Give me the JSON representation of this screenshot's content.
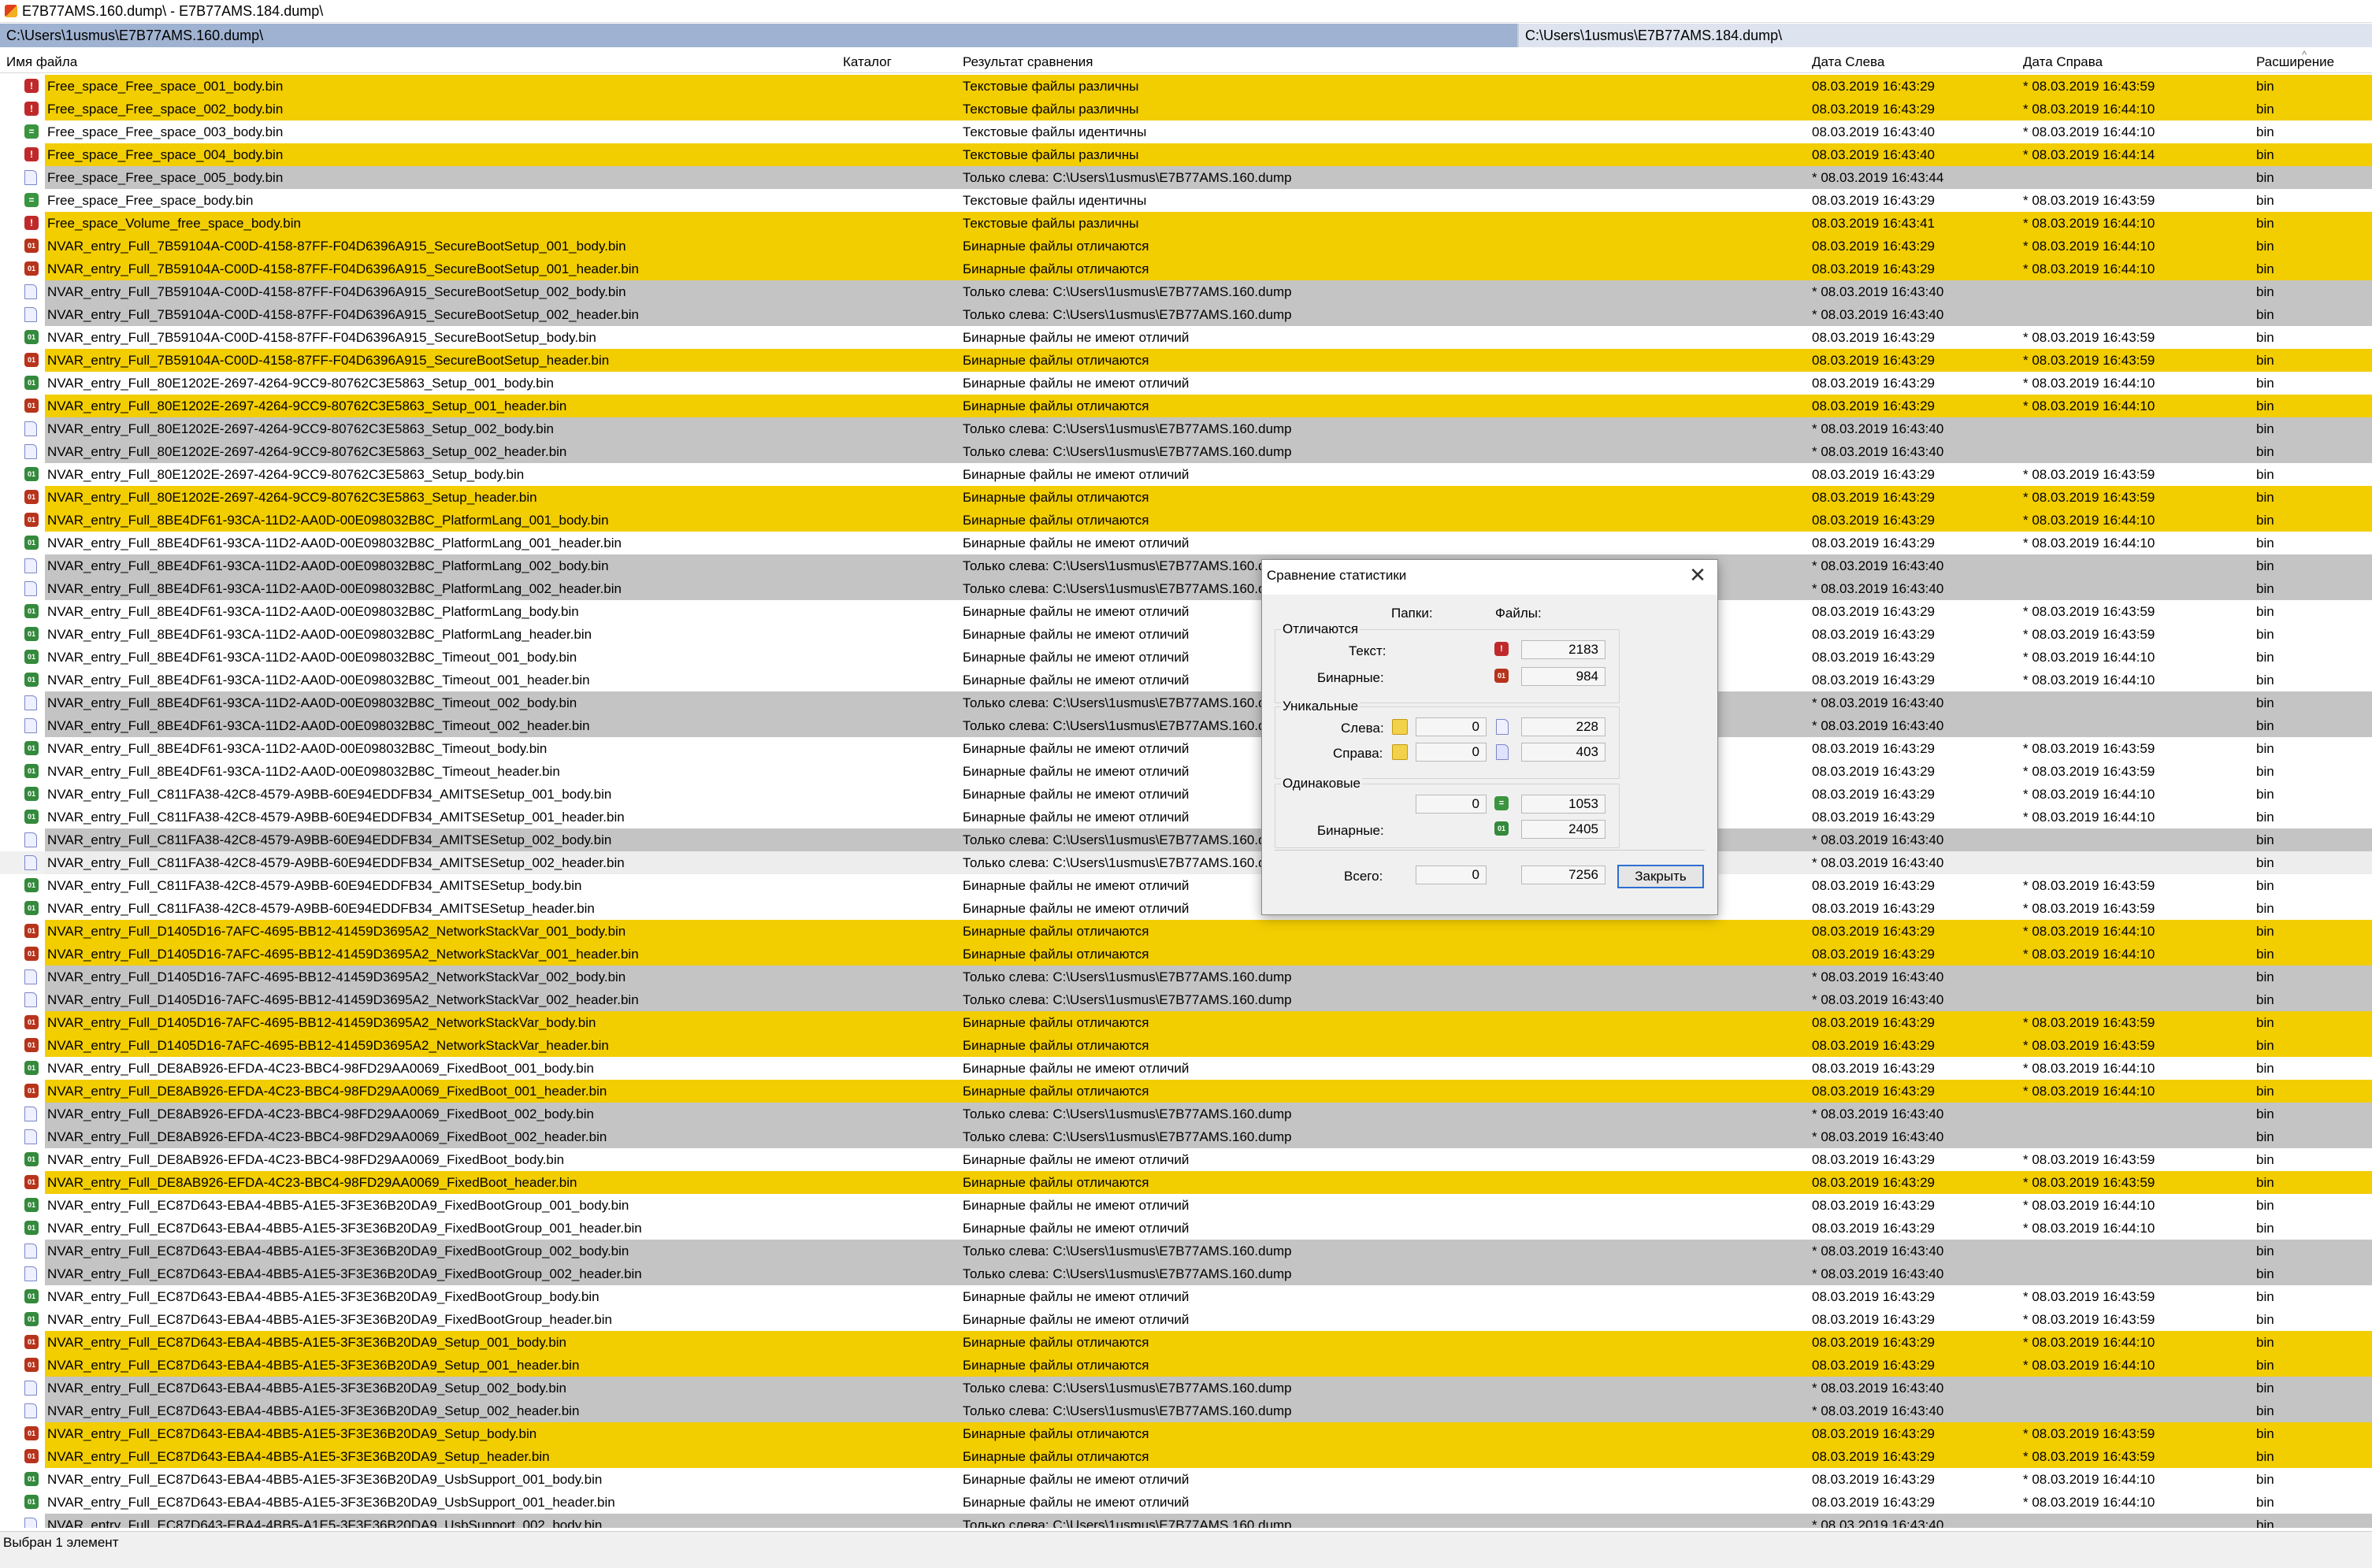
{
  "window": {
    "title": "E7B77AMS.160.dump\\ - E7B77AMS.184.dump\\"
  },
  "paths": {
    "left": "C:\\Users\\1usmus\\E7B77AMS.160.dump\\",
    "right": "C:\\Users\\1usmus\\E7B77AMS.184.dump\\"
  },
  "columns": {
    "name": "Имя файла",
    "folder": "Каталог",
    "result": "Результат сравнения",
    "date_left": "Дата Слева",
    "date_right": "Дата Справа",
    "ext": "Расширение"
  },
  "rows": [
    {
      "name": "Free_space_Free_space_001_body.bin",
      "type": "diff",
      "result": "Текстовые файлы различны",
      "dl": "08.03.2019 16:43:29",
      "dr": "* 08.03.2019 16:43:59",
      "ext": "bin"
    },
    {
      "name": "Free_space_Free_space_002_body.bin",
      "type": "diff",
      "result": "Текстовые файлы различны",
      "dl": "08.03.2019 16:43:29",
      "dr": "* 08.03.2019 16:44:10",
      "ext": "bin"
    },
    {
      "name": "Free_space_Free_space_003_body.bin",
      "type": "same",
      "result": "Текстовые файлы идентичны",
      "dl": "08.03.2019 16:43:40",
      "dr": "* 08.03.2019 16:44:10",
      "ext": "bin"
    },
    {
      "name": "Free_space_Free_space_004_body.bin",
      "type": "diff",
      "result": "Текстовые файлы различны",
      "dl": "08.03.2019 16:43:40",
      "dr": "* 08.03.2019 16:44:14",
      "ext": "bin"
    },
    {
      "name": "Free_space_Free_space_005_body.bin",
      "type": "left",
      "result": "Только слева: C:\\Users\\1usmus\\E7B77AMS.160.dump",
      "dl": "* 08.03.2019 16:43:44",
      "dr": "",
      "ext": "bin"
    },
    {
      "name": "Free_space_Free_space_body.bin",
      "type": "same",
      "result": "Текстовые файлы идентичны",
      "dl": "08.03.2019 16:43:29",
      "dr": "* 08.03.2019 16:43:59",
      "ext": "bin"
    },
    {
      "name": "Free_space_Volume_free_space_body.bin",
      "type": "diff",
      "result": "Текстовые файлы различны",
      "dl": "08.03.2019 16:43:41",
      "dr": "* 08.03.2019 16:44:10",
      "ext": "bin"
    },
    {
      "name": "NVAR_entry_Full_7B59104A-C00D-4158-87FF-F04D6396A915_SecureBootSetup_001_body.bin",
      "type": "bindiff",
      "result": "Бинарные файлы отличаются",
      "dl": "08.03.2019 16:43:29",
      "dr": "* 08.03.2019 16:44:10",
      "ext": "bin"
    },
    {
      "name": "NVAR_entry_Full_7B59104A-C00D-4158-87FF-F04D6396A915_SecureBootSetup_001_header.bin",
      "type": "bindiff",
      "result": "Бинарные файлы отличаются",
      "dl": "08.03.2019 16:43:29",
      "dr": "* 08.03.2019 16:44:10",
      "ext": "bin"
    },
    {
      "name": "NVAR_entry_Full_7B59104A-C00D-4158-87FF-F04D6396A915_SecureBootSetup_002_body.bin",
      "type": "left",
      "result": "Только слева: C:\\Users\\1usmus\\E7B77AMS.160.dump",
      "dl": "* 08.03.2019 16:43:40",
      "dr": "",
      "ext": "bin"
    },
    {
      "name": "NVAR_entry_Full_7B59104A-C00D-4158-87FF-F04D6396A915_SecureBootSetup_002_header.bin",
      "type": "left",
      "result": "Только слева: C:\\Users\\1usmus\\E7B77AMS.160.dump",
      "dl": "* 08.03.2019 16:43:40",
      "dr": "",
      "ext": "bin"
    },
    {
      "name": "NVAR_entry_Full_7B59104A-C00D-4158-87FF-F04D6396A915_SecureBootSetup_body.bin",
      "type": "binsame",
      "result": "Бинарные файлы не имеют отличий",
      "dl": "08.03.2019 16:43:29",
      "dr": "* 08.03.2019 16:43:59",
      "ext": "bin"
    },
    {
      "name": "NVAR_entry_Full_7B59104A-C00D-4158-87FF-F04D6396A915_SecureBootSetup_header.bin",
      "type": "bindiff",
      "result": "Бинарные файлы отличаются",
      "dl": "08.03.2019 16:43:29",
      "dr": "* 08.03.2019 16:43:59",
      "ext": "bin"
    },
    {
      "name": "NVAR_entry_Full_80E1202E-2697-4264-9CC9-80762C3E5863_Setup_001_body.bin",
      "type": "binsame",
      "result": "Бинарные файлы не имеют отличий",
      "dl": "08.03.2019 16:43:29",
      "dr": "* 08.03.2019 16:44:10",
      "ext": "bin"
    },
    {
      "name": "NVAR_entry_Full_80E1202E-2697-4264-9CC9-80762C3E5863_Setup_001_header.bin",
      "type": "bindiff",
      "result": "Бинарные файлы отличаются",
      "dl": "08.03.2019 16:43:29",
      "dr": "* 08.03.2019 16:44:10",
      "ext": "bin"
    },
    {
      "name": "NVAR_entry_Full_80E1202E-2697-4264-9CC9-80762C3E5863_Setup_002_body.bin",
      "type": "left",
      "result": "Только слева: C:\\Users\\1usmus\\E7B77AMS.160.dump",
      "dl": "* 08.03.2019 16:43:40",
      "dr": "",
      "ext": "bin"
    },
    {
      "name": "NVAR_entry_Full_80E1202E-2697-4264-9CC9-80762C3E5863_Setup_002_header.bin",
      "type": "left",
      "result": "Только слева: C:\\Users\\1usmus\\E7B77AMS.160.dump",
      "dl": "* 08.03.2019 16:43:40",
      "dr": "",
      "ext": "bin"
    },
    {
      "name": "NVAR_entry_Full_80E1202E-2697-4264-9CC9-80762C3E5863_Setup_body.bin",
      "type": "binsame",
      "result": "Бинарные файлы не имеют отличий",
      "dl": "08.03.2019 16:43:29",
      "dr": "* 08.03.2019 16:43:59",
      "ext": "bin"
    },
    {
      "name": "NVAR_entry_Full_80E1202E-2697-4264-9CC9-80762C3E5863_Setup_header.bin",
      "type": "bindiff",
      "result": "Бинарные файлы отличаются",
      "dl": "08.03.2019 16:43:29",
      "dr": "* 08.03.2019 16:43:59",
      "ext": "bin"
    },
    {
      "name": "NVAR_entry_Full_8BE4DF61-93CA-11D2-AA0D-00E098032B8C_PlatformLang_001_body.bin",
      "type": "bindiff",
      "result": "Бинарные файлы отличаются",
      "dl": "08.03.2019 16:43:29",
      "dr": "* 08.03.2019 16:44:10",
      "ext": "bin"
    },
    {
      "name": "NVAR_entry_Full_8BE4DF61-93CA-11D2-AA0D-00E098032B8C_PlatformLang_001_header.bin",
      "type": "binsame",
      "result": "Бинарные файлы не имеют отличий",
      "dl": "08.03.2019 16:43:29",
      "dr": "* 08.03.2019 16:44:10",
      "ext": "bin"
    },
    {
      "name": "NVAR_entry_Full_8BE4DF61-93CA-11D2-AA0D-00E098032B8C_PlatformLang_002_body.bin",
      "type": "left",
      "result": "Только слева: C:\\Users\\1usmus\\E7B77AMS.160.dump",
      "dl": "* 08.03.2019 16:43:40",
      "dr": "",
      "ext": "bin"
    },
    {
      "name": "NVAR_entry_Full_8BE4DF61-93CA-11D2-AA0D-00E098032B8C_PlatformLang_002_header.bin",
      "type": "left",
      "result": "Только слева: C:\\Users\\1usmus\\E7B77AMS.160.dump",
      "dl": "* 08.03.2019 16:43:40",
      "dr": "",
      "ext": "bin"
    },
    {
      "name": "NVAR_entry_Full_8BE4DF61-93CA-11D2-AA0D-00E098032B8C_PlatformLang_body.bin",
      "type": "binsame",
      "result": "Бинарные файлы не имеют отличий",
      "dl": "08.03.2019 16:43:29",
      "dr": "* 08.03.2019 16:43:59",
      "ext": "bin"
    },
    {
      "name": "NVAR_entry_Full_8BE4DF61-93CA-11D2-AA0D-00E098032B8C_PlatformLang_header.bin",
      "type": "binsame",
      "result": "Бинарные файлы не имеют отличий",
      "dl": "08.03.2019 16:43:29",
      "dr": "* 08.03.2019 16:43:59",
      "ext": "bin"
    },
    {
      "name": "NVAR_entry_Full_8BE4DF61-93CA-11D2-AA0D-00E098032B8C_Timeout_001_body.bin",
      "type": "binsame",
      "result": "Бинарные файлы не имеют отличий",
      "dl": "08.03.2019 16:43:29",
      "dr": "* 08.03.2019 16:44:10",
      "ext": "bin"
    },
    {
      "name": "NVAR_entry_Full_8BE4DF61-93CA-11D2-AA0D-00E098032B8C_Timeout_001_header.bin",
      "type": "binsame",
      "result": "Бинарные файлы не имеют отличий",
      "dl": "08.03.2019 16:43:29",
      "dr": "* 08.03.2019 16:44:10",
      "ext": "bin"
    },
    {
      "name": "NVAR_entry_Full_8BE4DF61-93CA-11D2-AA0D-00E098032B8C_Timeout_002_body.bin",
      "type": "left",
      "result": "Только слева: C:\\Users\\1usmus\\E7B77AMS.160.dump",
      "dl": "* 08.03.2019 16:43:40",
      "dr": "",
      "ext": "bin"
    },
    {
      "name": "NVAR_entry_Full_8BE4DF61-93CA-11D2-AA0D-00E098032B8C_Timeout_002_header.bin",
      "type": "left",
      "result": "Только слева: C:\\Users\\1usmus\\E7B77AMS.160.dump",
      "dl": "* 08.03.2019 16:43:40",
      "dr": "",
      "ext": "bin"
    },
    {
      "name": "NVAR_entry_Full_8BE4DF61-93CA-11D2-AA0D-00E098032B8C_Timeout_body.bin",
      "type": "binsame",
      "result": "Бинарные файлы не имеют отличий",
      "dl": "08.03.2019 16:43:29",
      "dr": "* 08.03.2019 16:43:59",
      "ext": "bin"
    },
    {
      "name": "NVAR_entry_Full_8BE4DF61-93CA-11D2-AA0D-00E098032B8C_Timeout_header.bin",
      "type": "binsame",
      "result": "Бинарные файлы не имеют отличий",
      "dl": "08.03.2019 16:43:29",
      "dr": "* 08.03.2019 16:43:59",
      "ext": "bin"
    },
    {
      "name": "NVAR_entry_Full_C811FA38-42C8-4579-A9BB-60E94EDDFB34_AMITSESetup_001_body.bin",
      "type": "binsame",
      "result": "Бинарные файлы не имеют отличий",
      "dl": "08.03.2019 16:43:29",
      "dr": "* 08.03.2019 16:44:10",
      "ext": "bin"
    },
    {
      "name": "NVAR_entry_Full_C811FA38-42C8-4579-A9BB-60E94EDDFB34_AMITSESetup_001_header.bin",
      "type": "binsame",
      "result": "Бинарные файлы не имеют отличий",
      "dl": "08.03.2019 16:43:29",
      "dr": "* 08.03.2019 16:44:10",
      "ext": "bin"
    },
    {
      "name": "NVAR_entry_Full_C811FA38-42C8-4579-A9BB-60E94EDDFB34_AMITSESetup_002_body.bin",
      "type": "left",
      "result": "Только слева: C:\\Users\\1usmus\\E7B77AMS.160.dump",
      "dl": "* 08.03.2019 16:43:40",
      "dr": "",
      "ext": "bin"
    },
    {
      "name": "NVAR_entry_Full_C811FA38-42C8-4579-A9BB-60E94EDDFB34_AMITSESetup_002_header.bin",
      "type": "left",
      "result": "Только слева: C:\\Users\\1usmus\\E7B77AMS.160.dump",
      "dl": "* 08.03.2019 16:43:40",
      "dr": "",
      "ext": "bin",
      "selected": true
    },
    {
      "name": "NVAR_entry_Full_C811FA38-42C8-4579-A9BB-60E94EDDFB34_AMITSESetup_body.bin",
      "type": "binsame",
      "result": "Бинарные файлы не имеют отличий",
      "dl": "08.03.2019 16:43:29",
      "dr": "* 08.03.2019 16:43:59",
      "ext": "bin"
    },
    {
      "name": "NVAR_entry_Full_C811FA38-42C8-4579-A9BB-60E94EDDFB34_AMITSESetup_header.bin",
      "type": "binsame",
      "result": "Бинарные файлы не имеют отличий",
      "dl": "08.03.2019 16:43:29",
      "dr": "* 08.03.2019 16:43:59",
      "ext": "bin"
    },
    {
      "name": "NVAR_entry_Full_D1405D16-7AFC-4695-BB12-41459D3695A2_NetworkStackVar_001_body.bin",
      "type": "bindiff",
      "result": "Бинарные файлы отличаются",
      "dl": "08.03.2019 16:43:29",
      "dr": "* 08.03.2019 16:44:10",
      "ext": "bin"
    },
    {
      "name": "NVAR_entry_Full_D1405D16-7AFC-4695-BB12-41459D3695A2_NetworkStackVar_001_header.bin",
      "type": "bindiff",
      "result": "Бинарные файлы отличаются",
      "dl": "08.03.2019 16:43:29",
      "dr": "* 08.03.2019 16:44:10",
      "ext": "bin"
    },
    {
      "name": "NVAR_entry_Full_D1405D16-7AFC-4695-BB12-41459D3695A2_NetworkStackVar_002_body.bin",
      "type": "left",
      "result": "Только слева: C:\\Users\\1usmus\\E7B77AMS.160.dump",
      "dl": "* 08.03.2019 16:43:40",
      "dr": "",
      "ext": "bin"
    },
    {
      "name": "NVAR_entry_Full_D1405D16-7AFC-4695-BB12-41459D3695A2_NetworkStackVar_002_header.bin",
      "type": "left",
      "result": "Только слева: C:\\Users\\1usmus\\E7B77AMS.160.dump",
      "dl": "* 08.03.2019 16:43:40",
      "dr": "",
      "ext": "bin"
    },
    {
      "name": "NVAR_entry_Full_D1405D16-7AFC-4695-BB12-41459D3695A2_NetworkStackVar_body.bin",
      "type": "bindiff",
      "result": "Бинарные файлы отличаются",
      "dl": "08.03.2019 16:43:29",
      "dr": "* 08.03.2019 16:43:59",
      "ext": "bin"
    },
    {
      "name": "NVAR_entry_Full_D1405D16-7AFC-4695-BB12-41459D3695A2_NetworkStackVar_header.bin",
      "type": "bindiff",
      "result": "Бинарные файлы отличаются",
      "dl": "08.03.2019 16:43:29",
      "dr": "* 08.03.2019 16:43:59",
      "ext": "bin"
    },
    {
      "name": "NVAR_entry_Full_DE8AB926-EFDA-4C23-BBC4-98FD29AA0069_FixedBoot_001_body.bin",
      "type": "binsame",
      "result": "Бинарные файлы не имеют отличий",
      "dl": "08.03.2019 16:43:29",
      "dr": "* 08.03.2019 16:44:10",
      "ext": "bin"
    },
    {
      "name": "NVAR_entry_Full_DE8AB926-EFDA-4C23-BBC4-98FD29AA0069_FixedBoot_001_header.bin",
      "type": "bindiff",
      "result": "Бинарные файлы отличаются",
      "dl": "08.03.2019 16:43:29",
      "dr": "* 08.03.2019 16:44:10",
      "ext": "bin"
    },
    {
      "name": "NVAR_entry_Full_DE8AB926-EFDA-4C23-BBC4-98FD29AA0069_FixedBoot_002_body.bin",
      "type": "left",
      "result": "Только слева: C:\\Users\\1usmus\\E7B77AMS.160.dump",
      "dl": "* 08.03.2019 16:43:40",
      "dr": "",
      "ext": "bin"
    },
    {
      "name": "NVAR_entry_Full_DE8AB926-EFDA-4C23-BBC4-98FD29AA0069_FixedBoot_002_header.bin",
      "type": "left",
      "result": "Только слева: C:\\Users\\1usmus\\E7B77AMS.160.dump",
      "dl": "* 08.03.2019 16:43:40",
      "dr": "",
      "ext": "bin"
    },
    {
      "name": "NVAR_entry_Full_DE8AB926-EFDA-4C23-BBC4-98FD29AA0069_FixedBoot_body.bin",
      "type": "binsame",
      "result": "Бинарные файлы не имеют отличий",
      "dl": "08.03.2019 16:43:29",
      "dr": "* 08.03.2019 16:43:59",
      "ext": "bin"
    },
    {
      "name": "NVAR_entry_Full_DE8AB926-EFDA-4C23-BBC4-98FD29AA0069_FixedBoot_header.bin",
      "type": "bindiff",
      "result": "Бинарные файлы отличаются",
      "dl": "08.03.2019 16:43:29",
      "dr": "* 08.03.2019 16:43:59",
      "ext": "bin"
    },
    {
      "name": "NVAR_entry_Full_EC87D643-EBA4-4BB5-A1E5-3F3E36B20DA9_FixedBootGroup_001_body.bin",
      "type": "binsame",
      "result": "Бинарные файлы не имеют отличий",
      "dl": "08.03.2019 16:43:29",
      "dr": "* 08.03.2019 16:44:10",
      "ext": "bin"
    },
    {
      "name": "NVAR_entry_Full_EC87D643-EBA4-4BB5-A1E5-3F3E36B20DA9_FixedBootGroup_001_header.bin",
      "type": "binsame",
      "result": "Бинарные файлы не имеют отличий",
      "dl": "08.03.2019 16:43:29",
      "dr": "* 08.03.2019 16:44:10",
      "ext": "bin"
    },
    {
      "name": "NVAR_entry_Full_EC87D643-EBA4-4BB5-A1E5-3F3E36B20DA9_FixedBootGroup_002_body.bin",
      "type": "left",
      "result": "Только слева: C:\\Users\\1usmus\\E7B77AMS.160.dump",
      "dl": "* 08.03.2019 16:43:40",
      "dr": "",
      "ext": "bin"
    },
    {
      "name": "NVAR_entry_Full_EC87D643-EBA4-4BB5-A1E5-3F3E36B20DA9_FixedBootGroup_002_header.bin",
      "type": "left",
      "result": "Только слева: C:\\Users\\1usmus\\E7B77AMS.160.dump",
      "dl": "* 08.03.2019 16:43:40",
      "dr": "",
      "ext": "bin"
    },
    {
      "name": "NVAR_entry_Full_EC87D643-EBA4-4BB5-A1E5-3F3E36B20DA9_FixedBootGroup_body.bin",
      "type": "binsame",
      "result": "Бинарные файлы не имеют отличий",
      "dl": "08.03.2019 16:43:29",
      "dr": "* 08.03.2019 16:43:59",
      "ext": "bin"
    },
    {
      "name": "NVAR_entry_Full_EC87D643-EBA4-4BB5-A1E5-3F3E36B20DA9_FixedBootGroup_header.bin",
      "type": "binsame",
      "result": "Бинарные файлы не имеют отличий",
      "dl": "08.03.2019 16:43:29",
      "dr": "* 08.03.2019 16:43:59",
      "ext": "bin"
    },
    {
      "name": "NVAR_entry_Full_EC87D643-EBA4-4BB5-A1E5-3F3E36B20DA9_Setup_001_body.bin",
      "type": "bindiff",
      "result": "Бинарные файлы отличаются",
      "dl": "08.03.2019 16:43:29",
      "dr": "* 08.03.2019 16:44:10",
      "ext": "bin"
    },
    {
      "name": "NVAR_entry_Full_EC87D643-EBA4-4BB5-A1E5-3F3E36B20DA9_Setup_001_header.bin",
      "type": "bindiff",
      "result": "Бинарные файлы отличаются",
      "dl": "08.03.2019 16:43:29",
      "dr": "* 08.03.2019 16:44:10",
      "ext": "bin"
    },
    {
      "name": "NVAR_entry_Full_EC87D643-EBA4-4BB5-A1E5-3F3E36B20DA9_Setup_002_body.bin",
      "type": "left",
      "result": "Только слева: C:\\Users\\1usmus\\E7B77AMS.160.dump",
      "dl": "* 08.03.2019 16:43:40",
      "dr": "",
      "ext": "bin"
    },
    {
      "name": "NVAR_entry_Full_EC87D643-EBA4-4BB5-A1E5-3F3E36B20DA9_Setup_002_header.bin",
      "type": "left",
      "result": "Только слева: C:\\Users\\1usmus\\E7B77AMS.160.dump",
      "dl": "* 08.03.2019 16:43:40",
      "dr": "",
      "ext": "bin"
    },
    {
      "name": "NVAR_entry_Full_EC87D643-EBA4-4BB5-A1E5-3F3E36B20DA9_Setup_body.bin",
      "type": "bindiff",
      "result": "Бинарные файлы отличаются",
      "dl": "08.03.2019 16:43:29",
      "dr": "* 08.03.2019 16:43:59",
      "ext": "bin"
    },
    {
      "name": "NVAR_entry_Full_EC87D643-EBA4-4BB5-A1E5-3F3E36B20DA9_Setup_header.bin",
      "type": "bindiff",
      "result": "Бинарные файлы отличаются",
      "dl": "08.03.2019 16:43:29",
      "dr": "* 08.03.2019 16:43:59",
      "ext": "bin"
    },
    {
      "name": "NVAR_entry_Full_EC87D643-EBA4-4BB5-A1E5-3F3E36B20DA9_UsbSupport_001_body.bin",
      "type": "binsame",
      "result": "Бинарные файлы не имеют отличий",
      "dl": "08.03.2019 16:43:29",
      "dr": "* 08.03.2019 16:44:10",
      "ext": "bin"
    },
    {
      "name": "NVAR_entry_Full_EC87D643-EBA4-4BB5-A1E5-3F3E36B20DA9_UsbSupport_001_header.bin",
      "type": "binsame",
      "result": "Бинарные файлы не имеют отличий",
      "dl": "08.03.2019 16:43:29",
      "dr": "* 08.03.2019 16:44:10",
      "ext": "bin"
    },
    {
      "name": "NVAR_entry_Full_EC87D643-EBA4-4BB5-A1E5-3F3E36B20DA9_UsbSupport_002_body.bin",
      "type": "left",
      "result": "Только слева: C:\\Users\\1usmus\\E7B77AMS.160.dump",
      "dl": "* 08.03.2019 16:43:40",
      "dr": "",
      "ext": "bin"
    }
  ],
  "status": {
    "text": "Выбран 1 элемент"
  },
  "dialog": {
    "title": "Сравнение статистики",
    "col_folders": "Папки:",
    "col_files": "Файлы:",
    "group_differ": "Отличаются",
    "label_text": "Текст:",
    "label_binary": "Бинарные:",
    "differ_text_files": "2183",
    "differ_binary_files": "984",
    "group_unique": "Уникальные",
    "label_left": "Слева:",
    "label_right": "Справа:",
    "unique_left_folders": "0",
    "unique_left_files": "228",
    "unique_right_folders": "0",
    "unique_right_files": "403",
    "group_same": "Одинаковые",
    "same_folders": "0",
    "same_text_files": "1053",
    "label_same_binary": "Бинарные:",
    "same_binary_files": "2405",
    "label_total": "Всего:",
    "total_folders": "0",
    "total_files": "7256",
    "close_label": "Закрыть",
    "close_glyph": "✕"
  }
}
